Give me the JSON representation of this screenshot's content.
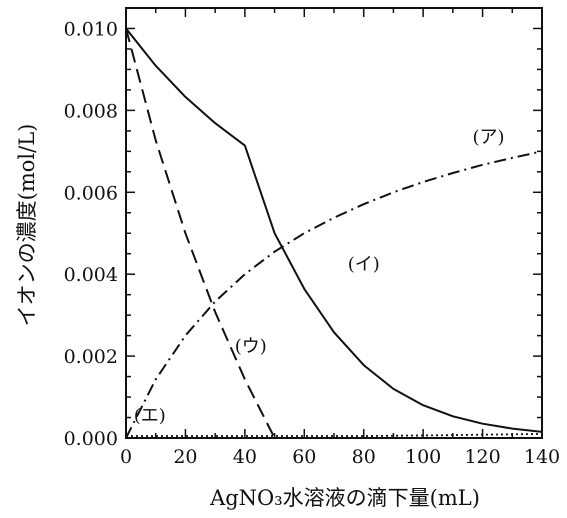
{
  "chart_data": {
    "type": "line",
    "xlabel": "AgNO₃水溶液の滴下量(mL)",
    "ylabel": "イオンの濃度(mol/L)",
    "xlim": [
      0,
      140
    ],
    "ylim": [
      0,
      0.0105
    ],
    "x_ticks": [
      0,
      20,
      40,
      60,
      80,
      100,
      120,
      140
    ],
    "x_tick_labels": [
      "0",
      "20",
      "40",
      "60",
      "80",
      "100",
      "120",
      "140"
    ],
    "y_ticks": [
      0,
      0.002,
      0.004,
      0.006,
      0.008,
      0.01
    ],
    "y_tick_labels": [
      "0.000",
      "0.002",
      "0.004",
      "0.006",
      "0.008",
      "0.010"
    ],
    "grid": false,
    "series": [
      {
        "name": "(ア)",
        "line_style": "dash-dot",
        "x": [
          0,
          10,
          20,
          30,
          40,
          50,
          60,
          70,
          80,
          90,
          100,
          110,
          120,
          130,
          140
        ],
        "values": [
          0,
          0.00143,
          0.0025,
          0.00333,
          0.004,
          0.00455,
          0.005,
          0.00538,
          0.00571,
          0.006,
          0.00625,
          0.00647,
          0.00667,
          0.00684,
          0.007
        ]
      },
      {
        "name": "(イ)",
        "line_style": "solid",
        "x": [
          0,
          10,
          20,
          30,
          40,
          50,
          60,
          70,
          80,
          90,
          100,
          110,
          120,
          130,
          140
        ],
        "values": [
          0.01,
          0.00909,
          0.00833,
          0.00769,
          0.00714,
          0.005,
          0.00364,
          0.00258,
          0.00178,
          0.0012,
          0.0008,
          0.00053,
          0.00035,
          0.00023,
          0.00015
        ]
      },
      {
        "name": "(ウ)",
        "line_style": "dashed",
        "x": [
          0,
          10,
          20,
          30,
          40,
          50,
          60,
          80,
          100,
          120,
          140
        ],
        "values": [
          0.01,
          0.00727,
          0.005,
          0.00308,
          0.00143,
          0,
          0,
          0,
          0,
          0,
          0
        ]
      },
      {
        "name": "(エ)",
        "line_style": "dotted",
        "x": [
          0,
          20,
          40,
          60,
          80,
          100,
          120,
          140
        ],
        "values": [
          5e-05,
          5e-05,
          5e-05,
          5e-05,
          5e-05,
          6e-05,
          8e-05,
          0.0001
        ]
      }
    ]
  }
}
